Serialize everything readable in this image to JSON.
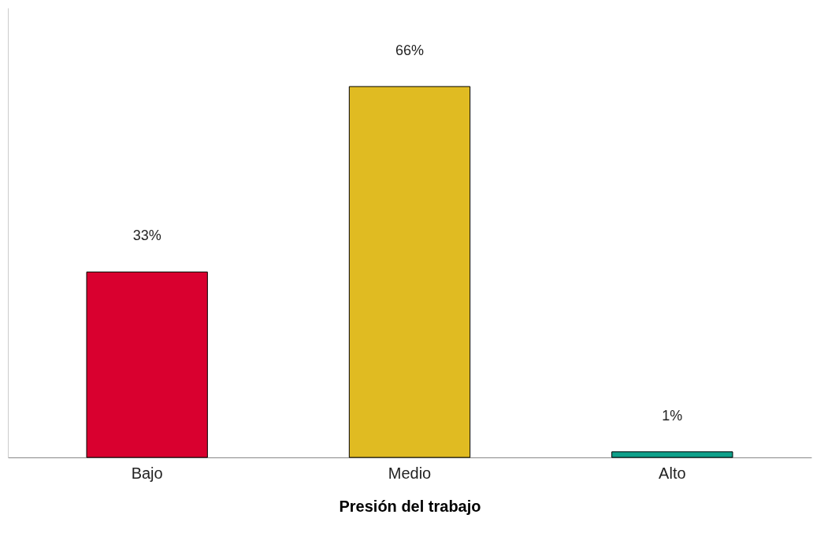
{
  "chart_data": {
    "type": "bar",
    "xlabel": "Presión del trabajo",
    "categories": [
      "Bajo",
      "Medio",
      "Alto"
    ],
    "values": [
      33,
      66,
      1
    ],
    "colors": [
      "#d9002f",
      "#e0bb22",
      "#0fa08a"
    ],
    "value_labels": [
      "33%",
      "66%",
      "1%"
    ],
    "ylim": [
      0,
      80
    ],
    "tick_labels": "x",
    "grid": false
  }
}
